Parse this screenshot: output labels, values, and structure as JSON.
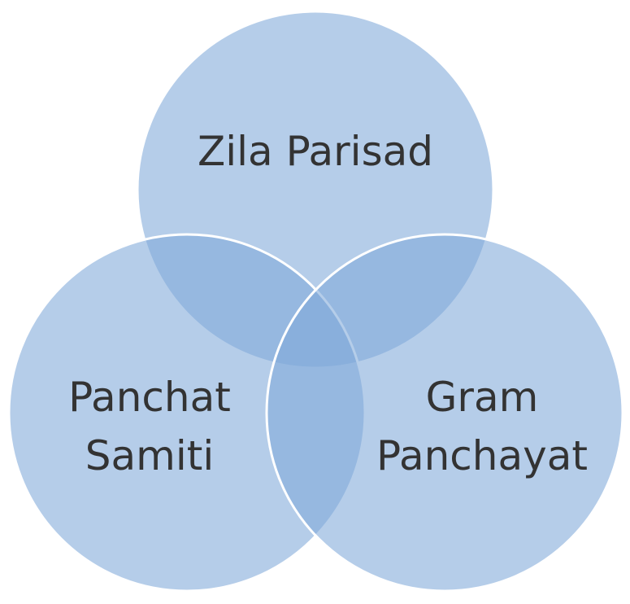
{
  "diagram": {
    "type": "venn",
    "circles": [
      {
        "id": "top",
        "label_lines": [
          "Zila Parisad"
        ]
      },
      {
        "id": "left",
        "label_lines": [
          "Panchat",
          "Samiti"
        ]
      },
      {
        "id": "right",
        "label_lines": [
          "Gram",
          "Panchayat"
        ]
      }
    ],
    "colors": {
      "circle_fill": "#7fa8d9",
      "circle_stroke": "#ffffff",
      "label_text": "#333333"
    }
  }
}
